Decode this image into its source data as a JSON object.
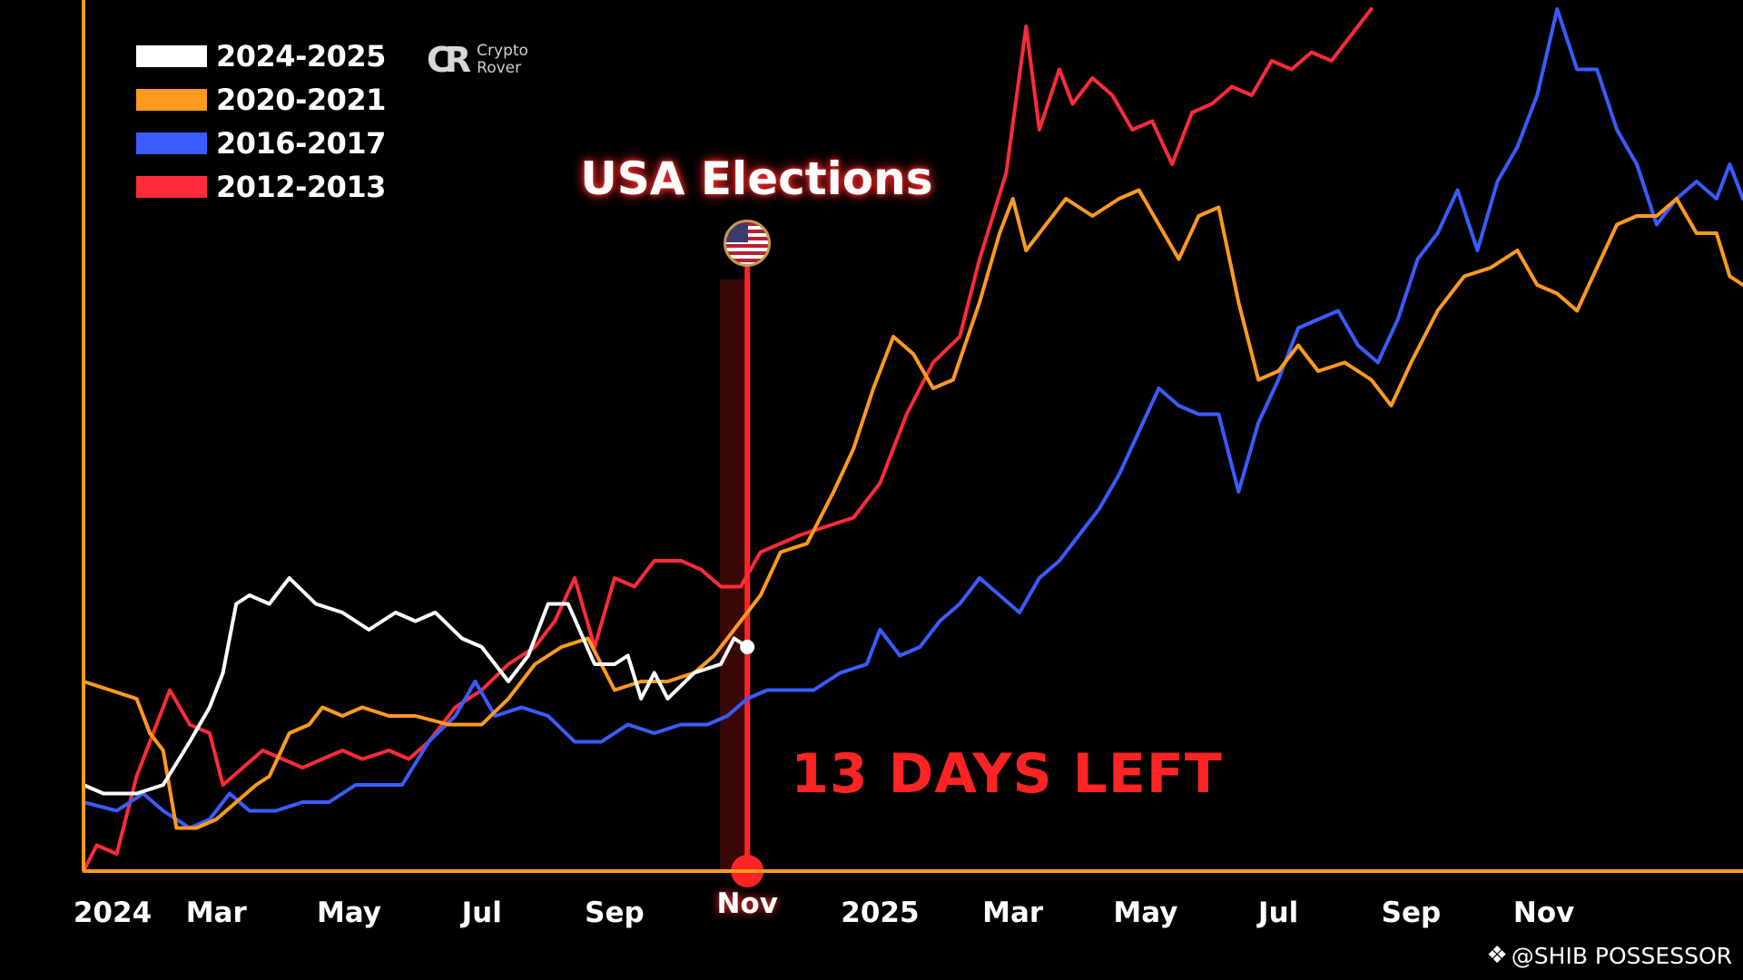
{
  "legend": [
    {
      "label": "2024-2025",
      "color": "#ffffff"
    },
    {
      "label": "2020-2021",
      "color": "#ff9a1f"
    },
    {
      "label": "2016-2017",
      "color": "#3a5cff"
    },
    {
      "label": "2012-2013",
      "color": "#ff2b3a"
    }
  ],
  "logo": {
    "line1": "Crypto",
    "line2": "Rover",
    "icon": "cr-logo-icon"
  },
  "event": {
    "title": "USA Elections",
    "countdown": "13 DAYS LEFT",
    "icon": "us-flag-icon",
    "marker_color": "#ff2424"
  },
  "watermark": {
    "icon": "binance-diamond-icon",
    "text": "@SHIB POSSESSOR"
  },
  "axis_color": "#ff9a1f",
  "chart_data": {
    "type": "line",
    "title": "",
    "xlabel": "",
    "ylabel": "",
    "x_tick_labels": [
      "2024",
      "Mar",
      "May",
      "Jul",
      "Sep",
      "Nov",
      "2025",
      "Mar",
      "May",
      "Jul",
      "Sep",
      "Nov"
    ],
    "x_tick_positions": [
      0,
      2,
      4,
      6,
      8,
      10,
      12,
      14,
      16,
      18,
      20,
      22
    ],
    "highlight_tick": "Nov",
    "event_x": 10,
    "xlim": [
      0,
      25
    ],
    "ylim": [
      0,
      100
    ],
    "grid": false,
    "legend_position": "top-left",
    "series": [
      {
        "name": "2024-2025",
        "color": "#ffffff",
        "width": 4,
        "end_dot": true,
        "points": [
          [
            0,
            10
          ],
          [
            0.3,
            9
          ],
          [
            0.8,
            9
          ],
          [
            1.2,
            10
          ],
          [
            1.6,
            15
          ],
          [
            1.9,
            19
          ],
          [
            2.1,
            23
          ],
          [
            2.3,
            31
          ],
          [
            2.5,
            32
          ],
          [
            2.8,
            31
          ],
          [
            3.1,
            34
          ],
          [
            3.5,
            31
          ],
          [
            3.9,
            30
          ],
          [
            4.3,
            28
          ],
          [
            4.7,
            30
          ],
          [
            5,
            29
          ],
          [
            5.3,
            30
          ],
          [
            5.7,
            27
          ],
          [
            6,
            26
          ],
          [
            6.4,
            22
          ],
          [
            6.7,
            25
          ],
          [
            7,
            31
          ],
          [
            7.3,
            31
          ],
          [
            7.7,
            24
          ],
          [
            8,
            24
          ],
          [
            8.2,
            25
          ],
          [
            8.4,
            20
          ],
          [
            8.6,
            23
          ],
          [
            8.8,
            20
          ],
          [
            9.2,
            23
          ],
          [
            9.6,
            24
          ],
          [
            9.8,
            27
          ],
          [
            10,
            26
          ]
        ]
      },
      {
        "name": "2020-2021",
        "color": "#ff9a1f",
        "width": 4,
        "points": [
          [
            0,
            22
          ],
          [
            0.4,
            21
          ],
          [
            0.8,
            20
          ],
          [
            1,
            16
          ],
          [
            1.2,
            14
          ],
          [
            1.4,
            5
          ],
          [
            1.7,
            5
          ],
          [
            2,
            6
          ],
          [
            2.3,
            8
          ],
          [
            2.6,
            10
          ],
          [
            2.8,
            11
          ],
          [
            3.1,
            16
          ],
          [
            3.4,
            17
          ],
          [
            3.6,
            19
          ],
          [
            3.9,
            18
          ],
          [
            4.2,
            19
          ],
          [
            4.6,
            18
          ],
          [
            5,
            18
          ],
          [
            5.5,
            17
          ],
          [
            6,
            17
          ],
          [
            6.4,
            20
          ],
          [
            6.8,
            24
          ],
          [
            7.2,
            26
          ],
          [
            7.6,
            27
          ],
          [
            8,
            21
          ],
          [
            8.4,
            22
          ],
          [
            8.8,
            22
          ],
          [
            9.2,
            23
          ],
          [
            9.5,
            25
          ],
          [
            9.8,
            28
          ],
          [
            10.2,
            32
          ],
          [
            10.5,
            37
          ],
          [
            10.9,
            38
          ],
          [
            11.3,
            44
          ],
          [
            11.6,
            49
          ],
          [
            11.9,
            56
          ],
          [
            12.2,
            62
          ],
          [
            12.5,
            60
          ],
          [
            12.8,
            56
          ],
          [
            13.1,
            57
          ],
          [
            13.5,
            66
          ],
          [
            13.8,
            74
          ],
          [
            14,
            78
          ],
          [
            14.2,
            72
          ],
          [
            14.5,
            75
          ],
          [
            14.8,
            78
          ],
          [
            15.2,
            76
          ],
          [
            15.6,
            78
          ],
          [
            15.9,
            79
          ],
          [
            16.2,
            75
          ],
          [
            16.5,
            71
          ],
          [
            16.8,
            76
          ],
          [
            17.1,
            77
          ],
          [
            17.4,
            66
          ],
          [
            17.7,
            57
          ],
          [
            18,
            58
          ],
          [
            18.3,
            61
          ],
          [
            18.6,
            58
          ],
          [
            19,
            59
          ],
          [
            19.4,
            57
          ],
          [
            19.7,
            54
          ],
          [
            20,
            59
          ],
          [
            20.4,
            65
          ],
          [
            20.8,
            69
          ],
          [
            21.2,
            70
          ],
          [
            21.6,
            72
          ],
          [
            21.9,
            68
          ],
          [
            22.2,
            67
          ],
          [
            22.5,
            65
          ],
          [
            22.8,
            70
          ],
          [
            23.1,
            75
          ],
          [
            23.4,
            76
          ],
          [
            23.7,
            76
          ],
          [
            24,
            78
          ],
          [
            24.3,
            74
          ],
          [
            24.6,
            74
          ],
          [
            24.8,
            69
          ],
          [
            25,
            68
          ]
        ]
      },
      {
        "name": "2016-2017",
        "color": "#3a5cff",
        "width": 4,
        "points": [
          [
            0,
            8
          ],
          [
            0.5,
            7
          ],
          [
            0.9,
            9
          ],
          [
            1.2,
            7
          ],
          [
            1.4,
            6
          ],
          [
            1.6,
            5
          ],
          [
            1.9,
            6
          ],
          [
            2.2,
            9
          ],
          [
            2.5,
            7
          ],
          [
            2.9,
            7
          ],
          [
            3.3,
            8
          ],
          [
            3.7,
            8
          ],
          [
            4.1,
            10
          ],
          [
            4.5,
            10
          ],
          [
            4.8,
            10
          ],
          [
            5.2,
            15
          ],
          [
            5.6,
            18
          ],
          [
            5.9,
            22
          ],
          [
            6.2,
            18
          ],
          [
            6.6,
            19
          ],
          [
            7,
            18
          ],
          [
            7.4,
            15
          ],
          [
            7.8,
            15
          ],
          [
            8.2,
            17
          ],
          [
            8.6,
            16
          ],
          [
            9,
            17
          ],
          [
            9.4,
            17
          ],
          [
            9.7,
            18
          ],
          [
            10,
            20
          ],
          [
            10.3,
            21
          ],
          [
            10.7,
            21
          ],
          [
            11,
            21
          ],
          [
            11.4,
            23
          ],
          [
            11.8,
            24
          ],
          [
            12,
            28
          ],
          [
            12.3,
            25
          ],
          [
            12.6,
            26
          ],
          [
            12.9,
            29
          ],
          [
            13.2,
            31
          ],
          [
            13.5,
            34
          ],
          [
            13.8,
            32
          ],
          [
            14.1,
            30
          ],
          [
            14.4,
            34
          ],
          [
            14.7,
            36
          ],
          [
            15,
            39
          ],
          [
            15.3,
            42
          ],
          [
            15.6,
            46
          ],
          [
            15.9,
            51
          ],
          [
            16.2,
            56
          ],
          [
            16.5,
            54
          ],
          [
            16.8,
            53
          ],
          [
            17.1,
            53
          ],
          [
            17.4,
            44
          ],
          [
            17.7,
            52
          ],
          [
            18,
            57
          ],
          [
            18.3,
            63
          ],
          [
            18.6,
            64
          ],
          [
            18.9,
            65
          ],
          [
            19.2,
            61
          ],
          [
            19.5,
            59
          ],
          [
            19.8,
            64
          ],
          [
            20.1,
            71
          ],
          [
            20.4,
            74
          ],
          [
            20.7,
            79
          ],
          [
            21,
            72
          ],
          [
            21.3,
            80
          ],
          [
            21.6,
            84
          ],
          [
            21.9,
            90
          ],
          [
            22.2,
            100
          ],
          [
            22.5,
            93
          ],
          [
            22.8,
            93
          ],
          [
            23.1,
            86
          ],
          [
            23.4,
            82
          ],
          [
            23.7,
            75
          ],
          [
            24,
            78
          ],
          [
            24.3,
            80
          ],
          [
            24.6,
            78
          ],
          [
            24.8,
            82
          ],
          [
            25,
            78
          ]
        ]
      },
      {
        "name": "2012-2013",
        "color": "#ff2b3a",
        "width": 4,
        "points": [
          [
            0,
            0
          ],
          [
            0.2,
            3
          ],
          [
            0.5,
            2
          ],
          [
            0.8,
            11
          ],
          [
            1.1,
            17
          ],
          [
            1.3,
            21
          ],
          [
            1.6,
            17
          ],
          [
            1.9,
            16
          ],
          [
            2.1,
            10
          ],
          [
            2.4,
            12
          ],
          [
            2.7,
            14
          ],
          [
            3,
            13
          ],
          [
            3.3,
            12
          ],
          [
            3.6,
            13
          ],
          [
            3.9,
            14
          ],
          [
            4.2,
            13
          ],
          [
            4.6,
            14
          ],
          [
            4.9,
            13
          ],
          [
            5.2,
            15
          ],
          [
            5.6,
            19
          ],
          [
            6,
            21
          ],
          [
            6.4,
            24
          ],
          [
            6.8,
            26
          ],
          [
            7.1,
            29
          ],
          [
            7.4,
            34
          ],
          [
            7.7,
            26
          ],
          [
            8,
            34
          ],
          [
            8.3,
            33
          ],
          [
            8.6,
            36
          ],
          [
            9,
            36
          ],
          [
            9.3,
            35
          ],
          [
            9.6,
            33
          ],
          [
            9.9,
            33
          ],
          [
            10.2,
            37
          ],
          [
            10.5,
            38
          ],
          [
            10.8,
            39
          ],
          [
            11.2,
            40
          ],
          [
            11.6,
            41
          ],
          [
            12,
            45
          ],
          [
            12.4,
            53
          ],
          [
            12.8,
            59
          ],
          [
            13.2,
            62
          ],
          [
            13.5,
            71
          ],
          [
            13.9,
            81
          ],
          [
            14.2,
            98
          ],
          [
            14.4,
            86
          ],
          [
            14.7,
            93
          ],
          [
            14.9,
            89
          ],
          [
            15.2,
            92
          ],
          [
            15.5,
            90
          ],
          [
            15.8,
            86
          ],
          [
            16.1,
            87
          ],
          [
            16.4,
            82
          ],
          [
            16.7,
            88
          ],
          [
            17,
            89
          ],
          [
            17.3,
            91
          ],
          [
            17.6,
            90
          ],
          [
            17.9,
            94
          ],
          [
            18.2,
            93
          ],
          [
            18.5,
            95
          ],
          [
            18.8,
            94
          ],
          [
            19.1,
            97
          ],
          [
            19.4,
            100
          ]
        ]
      }
    ]
  }
}
